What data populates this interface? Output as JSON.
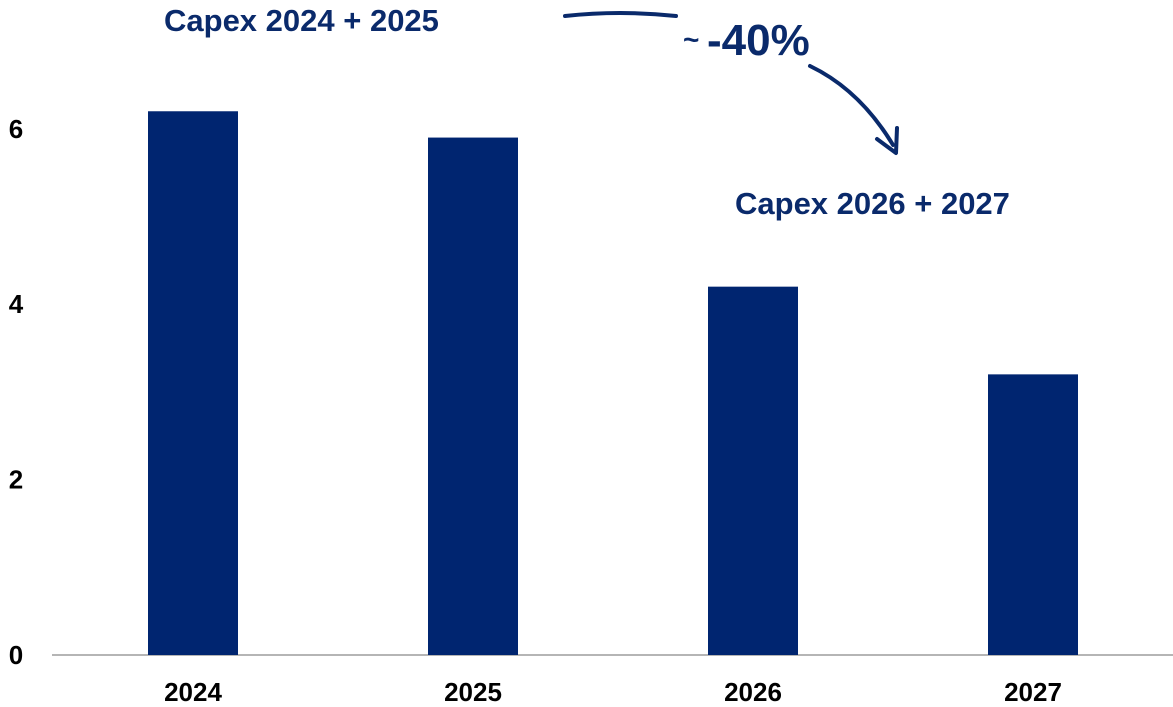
{
  "chart_data": {
    "type": "bar",
    "title": "",
    "xlabel": "",
    "ylabel": "",
    "categories": [
      "2024",
      "2025",
      "2026",
      "2027"
    ],
    "values": [
      6.2,
      5.9,
      4.2,
      3.2
    ],
    "ylim": [
      0,
      6.5
    ],
    "yticks": [
      "0",
      "2",
      "4",
      "6"
    ],
    "grid": false,
    "legend": "none",
    "bar_color": "#002570",
    "annotations": {
      "left_label": "Capex 2024 + 2025",
      "right_label": "Capex 2026 + 2027",
      "change_tilde": "~",
      "change_value": "-40%"
    }
  }
}
